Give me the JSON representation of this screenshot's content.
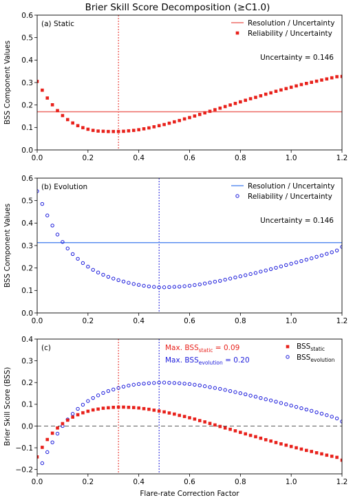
{
  "figure": {
    "title": "Brier Skill Score Decomposition (≥C1.0)"
  },
  "chart_data": [
    {
      "type": "scatter",
      "panel_label": "(a) Static",
      "ylabel": "BSS Component Values",
      "xlim": [
        0,
        1.2
      ],
      "ylim": [
        0,
        0.6
      ],
      "xticks": [
        "0.0",
        "0.2",
        "0.4",
        "0.6",
        "0.8",
        "1.0",
        "1.2"
      ],
      "yticks": [
        "0.0",
        "0.1",
        "0.2",
        "0.3",
        "0.4",
        "0.5",
        "0.6"
      ],
      "color": "#e8211b",
      "line_color": "#ee6b66",
      "vline_x": 0.32,
      "uncertainty_text": "Uncertainty = 0.146",
      "legend_position": "top-right",
      "series": [
        {
          "name": "Resolution / Uncertainty",
          "kind": "hline",
          "y": 0.17
        },
        {
          "name": "Reliability / Uncertainty",
          "kind": "points",
          "marker": "square",
          "x": [
            0.0,
            0.02,
            0.04,
            0.06,
            0.08,
            0.1,
            0.12,
            0.14,
            0.16,
            0.18,
            0.2,
            0.22,
            0.24,
            0.26,
            0.28,
            0.3,
            0.32,
            0.34,
            0.36,
            0.38,
            0.4,
            0.42,
            0.44,
            0.46,
            0.48,
            0.5,
            0.52,
            0.54,
            0.56,
            0.58,
            0.6,
            0.62,
            0.64,
            0.66,
            0.68,
            0.7,
            0.72,
            0.74,
            0.76,
            0.78,
            0.8,
            0.82,
            0.84,
            0.86,
            0.88,
            0.9,
            0.92,
            0.94,
            0.96,
            0.98,
            1.0,
            1.02,
            1.04,
            1.06,
            1.08,
            1.1,
            1.12,
            1.14,
            1.16,
            1.18,
            1.2
          ],
          "y": [
            0.305,
            0.266,
            0.231,
            0.201,
            0.175,
            0.153,
            0.135,
            0.12,
            0.108,
            0.099,
            0.092,
            0.087,
            0.084,
            0.083,
            0.082,
            0.082,
            0.082,
            0.083,
            0.085,
            0.087,
            0.09,
            0.094,
            0.098,
            0.103,
            0.108,
            0.113,
            0.119,
            0.125,
            0.131,
            0.138,
            0.144,
            0.151,
            0.158,
            0.165,
            0.172,
            0.179,
            0.186,
            0.193,
            0.2,
            0.207,
            0.214,
            0.221,
            0.228,
            0.234,
            0.241,
            0.248,
            0.254,
            0.261,
            0.267,
            0.273,
            0.279,
            0.285,
            0.291,
            0.296,
            0.301,
            0.306,
            0.311,
            0.316,
            0.321,
            0.326,
            0.327
          ]
        }
      ]
    },
    {
      "type": "scatter",
      "panel_label": "(b) Evolution",
      "ylabel": "BSS Component Values",
      "xlim": [
        0,
        1.2
      ],
      "ylim": [
        0,
        0.6
      ],
      "xticks": [
        "0.0",
        "0.2",
        "0.4",
        "0.6",
        "0.8",
        "1.0",
        "1.2"
      ],
      "yticks": [
        "0.0",
        "0.1",
        "0.2",
        "0.3",
        "0.4",
        "0.5",
        "0.6"
      ],
      "color": "#1a1adb",
      "line_color": "#5b8ff0",
      "vline_x": 0.48,
      "uncertainty_text": "Uncertainty = 0.146",
      "legend_position": "top-right",
      "series": [
        {
          "name": "Resolution / Uncertainty",
          "kind": "hline",
          "y": 0.313
        },
        {
          "name": "Reliability / Uncertainty",
          "kind": "points",
          "marker": "circle",
          "x": [
            0.0,
            0.02,
            0.04,
            0.06,
            0.08,
            0.1,
            0.12,
            0.14,
            0.16,
            0.18,
            0.2,
            0.22,
            0.24,
            0.26,
            0.28,
            0.3,
            0.32,
            0.34,
            0.36,
            0.38,
            0.4,
            0.42,
            0.44,
            0.46,
            0.48,
            0.5,
            0.52,
            0.54,
            0.56,
            0.58,
            0.6,
            0.62,
            0.64,
            0.66,
            0.68,
            0.7,
            0.72,
            0.74,
            0.76,
            0.78,
            0.8,
            0.82,
            0.84,
            0.86,
            0.88,
            0.9,
            0.92,
            0.94,
            0.96,
            0.98,
            1.0,
            1.02,
            1.04,
            1.06,
            1.08,
            1.1,
            1.12,
            1.14,
            1.16,
            1.18,
            1.2
          ],
          "y": [
            0.542,
            0.485,
            0.434,
            0.389,
            0.349,
            0.316,
            0.287,
            0.262,
            0.241,
            0.222,
            0.206,
            0.192,
            0.18,
            0.17,
            0.161,
            0.153,
            0.146,
            0.14,
            0.134,
            0.129,
            0.125,
            0.121,
            0.118,
            0.116,
            0.114,
            0.114,
            0.115,
            0.116,
            0.117,
            0.119,
            0.121,
            0.124,
            0.127,
            0.131,
            0.135,
            0.139,
            0.143,
            0.148,
            0.153,
            0.158,
            0.163,
            0.168,
            0.173,
            0.178,
            0.184,
            0.189,
            0.195,
            0.201,
            0.207,
            0.213,
            0.219,
            0.225,
            0.231,
            0.237,
            0.243,
            0.25,
            0.256,
            0.263,
            0.27,
            0.278,
            0.294
          ]
        }
      ]
    },
    {
      "type": "scatter",
      "panel_label": "(c)",
      "ylabel": "Brier Skill Score (BSS)",
      "xlabel": "Flare-rate Correction Factor",
      "xlim": [
        0,
        1.2
      ],
      "ylim": [
        -0.22,
        0.4
      ],
      "xticks": [
        "0.0",
        "0.2",
        "0.4",
        "0.6",
        "0.8",
        "1.0",
        "1.2"
      ],
      "yticks": [
        "−0.2",
        "−0.1",
        "0.0",
        "0.1",
        "0.2",
        "0.3",
        "0.4"
      ],
      "ytick_values": [
        -0.2,
        -0.1,
        0.0,
        0.1,
        0.2,
        0.3,
        0.4
      ],
      "static_color": "#e8211b",
      "evolution_color": "#1a1adb",
      "zero_line": 0.0,
      "vlines": [
        0.32,
        0.48
      ],
      "annotations": {
        "static_prefix": "Max. BSS",
        "static_sub": "static",
        "static_suffix": " = 0.09",
        "evo_prefix": "Max. BSS",
        "evo_sub": "evolution",
        "evo_suffix": " = 0.20"
      },
      "legend_position": "top-right",
      "series": [
        {
          "name": "BSS",
          "name_sub": "static",
          "kind": "points",
          "marker": "square",
          "x": [
            0.0,
            0.02,
            0.04,
            0.06,
            0.08,
            0.1,
            0.12,
            0.14,
            0.16,
            0.18,
            0.2,
            0.22,
            0.24,
            0.26,
            0.28,
            0.3,
            0.32,
            0.34,
            0.36,
            0.38,
            0.4,
            0.42,
            0.44,
            0.46,
            0.48,
            0.5,
            0.52,
            0.54,
            0.56,
            0.58,
            0.6,
            0.62,
            0.64,
            0.66,
            0.68,
            0.7,
            0.72,
            0.74,
            0.76,
            0.78,
            0.8,
            0.82,
            0.84,
            0.86,
            0.88,
            0.9,
            0.92,
            0.94,
            0.96,
            0.98,
            1.0,
            1.02,
            1.04,
            1.06,
            1.08,
            1.1,
            1.12,
            1.14,
            1.16,
            1.18,
            1.2
          ],
          "y": [
            -0.142,
            -0.098,
            -0.062,
            -0.033,
            -0.009,
            0.011,
            0.027,
            0.041,
            0.052,
            0.061,
            0.068,
            0.074,
            0.078,
            0.082,
            0.084,
            0.086,
            0.087,
            0.087,
            0.086,
            0.085,
            0.083,
            0.08,
            0.077,
            0.073,
            0.069,
            0.065,
            0.06,
            0.055,
            0.049,
            0.044,
            0.038,
            0.032,
            0.025,
            0.019,
            0.012,
            0.005,
            -0.002,
            -0.009,
            -0.015,
            -0.022,
            -0.029,
            -0.036,
            -0.043,
            -0.049,
            -0.056,
            -0.063,
            -0.069,
            -0.076,
            -0.082,
            -0.088,
            -0.094,
            -0.1,
            -0.106,
            -0.112,
            -0.117,
            -0.123,
            -0.128,
            -0.134,
            -0.139,
            -0.144,
            -0.157
          ]
        },
        {
          "name": "BSS",
          "name_sub": "evolution",
          "kind": "points",
          "marker": "circle",
          "x": [
            0.0,
            0.02,
            0.04,
            0.06,
            0.08,
            0.1,
            0.12,
            0.14,
            0.16,
            0.18,
            0.2,
            0.22,
            0.24,
            0.26,
            0.28,
            0.3,
            0.32,
            0.34,
            0.36,
            0.38,
            0.4,
            0.42,
            0.44,
            0.46,
            0.48,
            0.5,
            0.52,
            0.54,
            0.56,
            0.58,
            0.6,
            0.62,
            0.64,
            0.66,
            0.68,
            0.7,
            0.72,
            0.74,
            0.76,
            0.78,
            0.8,
            0.82,
            0.84,
            0.86,
            0.88,
            0.9,
            0.92,
            0.94,
            0.96,
            0.98,
            1.0,
            1.02,
            1.04,
            1.06,
            1.08,
            1.1,
            1.12,
            1.14,
            1.16,
            1.18,
            1.2
          ],
          "y": [
            -0.228,
            -0.171,
            -0.12,
            -0.075,
            -0.035,
            0.0,
            0.03,
            0.056,
            0.079,
            0.098,
            0.115,
            0.129,
            0.141,
            0.152,
            0.161,
            0.168,
            0.175,
            0.181,
            0.186,
            0.19,
            0.193,
            0.195,
            0.197,
            0.198,
            0.2,
            0.2,
            0.199,
            0.198,
            0.197,
            0.195,
            0.193,
            0.19,
            0.187,
            0.183,
            0.179,
            0.175,
            0.171,
            0.166,
            0.161,
            0.156,
            0.151,
            0.146,
            0.14,
            0.135,
            0.129,
            0.123,
            0.118,
            0.112,
            0.106,
            0.1,
            0.094,
            0.088,
            0.082,
            0.076,
            0.07,
            0.063,
            0.057,
            0.05,
            0.043,
            0.035,
            0.021
          ]
        }
      ]
    }
  ]
}
